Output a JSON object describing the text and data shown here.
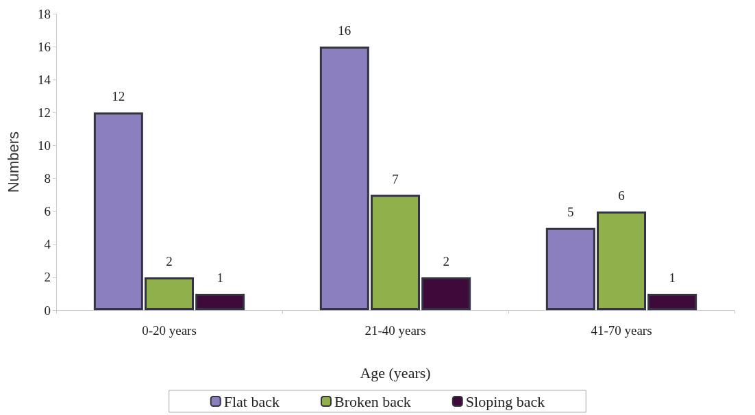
{
  "chart_data": {
    "type": "bar",
    "xlabel": "Age (years)",
    "ylabel": "Numbers",
    "categories": [
      "0-20 years",
      "21-40 years",
      "41-70 years"
    ],
    "series": [
      {
        "name": "Flat back",
        "color": "#8b7fc0",
        "values": [
          12,
          16,
          5
        ]
      },
      {
        "name": "Broken back",
        "color": "#8fb04a",
        "values": [
          2,
          7,
          6
        ]
      },
      {
        "name": "Sloping back",
        "color": "#3d0a3a",
        "values": [
          1,
          2,
          1
        ]
      }
    ],
    "ylim": [
      0,
      18
    ],
    "yticks": [
      0,
      2,
      4,
      6,
      8,
      10,
      12,
      14,
      16,
      18
    ],
    "grid": false,
    "legend": "bottom",
    "data_labels": true
  }
}
